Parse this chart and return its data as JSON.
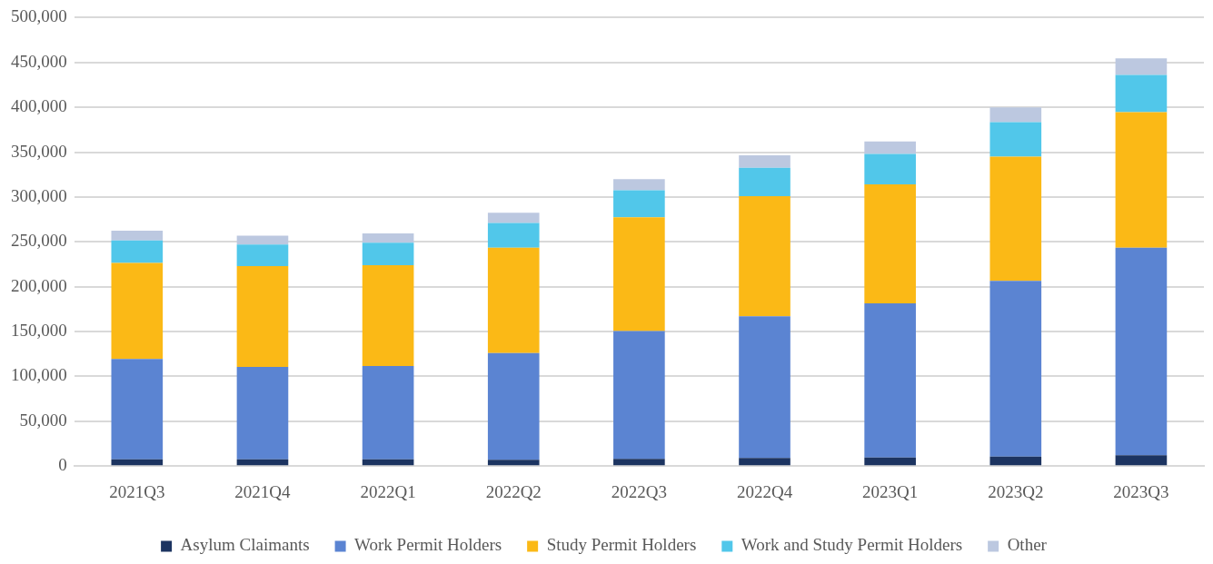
{
  "chart_data": {
    "type": "bar",
    "stacked": true,
    "categories": [
      "2021Q3",
      "2021Q4",
      "2022Q1",
      "2022Q2",
      "2022Q3",
      "2022Q4",
      "2023Q1",
      "2023Q2",
      "2023Q3"
    ],
    "series": [
      {
        "name": "Asylum Claimants",
        "color": "#1c3461",
        "values": [
          7500,
          7500,
          7500,
          7000,
          8000,
          9000,
          9500,
          10500,
          12000
        ]
      },
      {
        "name": "Work Permit Holders",
        "color": "#5b84d2",
        "values": [
          112000,
          103000,
          104000,
          119000,
          142500,
          158000,
          172000,
          196000,
          231500
        ]
      },
      {
        "name": "Study Permit Holders",
        "color": "#fbb916",
        "values": [
          107000,
          112500,
          112500,
          117500,
          127000,
          134000,
          132500,
          138500,
          151000
        ]
      },
      {
        "name": "Work and Study Permit Holders",
        "color": "#51c7ea",
        "values": [
          25000,
          24000,
          25000,
          27500,
          30000,
          31500,
          34000,
          38500,
          41500
        ]
      },
      {
        "name": "Other",
        "color": "#bcc8e0",
        "values": [
          11000,
          10000,
          10500,
          11500,
          12500,
          14000,
          14000,
          16500,
          18500
        ]
      }
    ],
    "ylim": [
      0,
      500000
    ],
    "yticks": [
      0,
      {
        "value": 50000,
        "label": "50,000"
      },
      {
        "value": 100000,
        "label": "100,000"
      },
      {
        "value": 150000,
        "label": "150,000"
      },
      {
        "value": 200000,
        "label": "200,000"
      },
      {
        "value": 250000,
        "label": "250,000"
      },
      {
        "value": 300000,
        "label": "300,000"
      },
      {
        "value": 350000,
        "label": "350,000"
      },
      {
        "value": 400000,
        "label": "400,000"
      },
      {
        "value": 450000,
        "label": "450,000"
      },
      {
        "value": 500000,
        "label": "500,000"
      }
    ],
    "grid": "y",
    "legend": "bottom"
  }
}
